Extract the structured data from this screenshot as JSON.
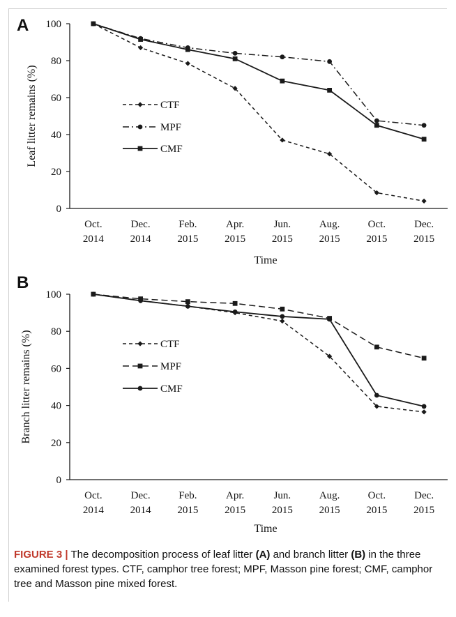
{
  "chart_data": [
    {
      "panel": "A",
      "type": "line",
      "ylabel": "Leaf litter remains (%)",
      "xlabel": "Time",
      "categories": [
        [
          "Oct.",
          "2014"
        ],
        [
          "Dec.",
          "2014"
        ],
        [
          "Feb.",
          "2015"
        ],
        [
          "Apr.",
          "2015"
        ],
        [
          "Jun.",
          "2015"
        ],
        [
          "Aug.",
          "2015"
        ],
        [
          "Oct.",
          "2015"
        ],
        [
          "Dec.",
          "2015"
        ]
      ],
      "ylim": [
        0,
        100
      ],
      "yticks": [
        "0",
        "20",
        "40",
        "60",
        "80",
        "100"
      ],
      "legend_position": "middle-left",
      "series": [
        {
          "name": "CTF",
          "dash": "short-dash",
          "marker": "diamond",
          "values": [
            100,
            87,
            78.5,
            65,
            37,
            29.5,
            8.5,
            4
          ]
        },
        {
          "name": "MPF",
          "dash": "dash-dot",
          "marker": "circle",
          "values": [
            100,
            92,
            87,
            84,
            82,
            79.5,
            47.5,
            45
          ]
        },
        {
          "name": "CMF",
          "dash": "solid",
          "marker": "square",
          "values": [
            100,
            91.5,
            86,
            81,
            69,
            64,
            45,
            37.5
          ]
        }
      ]
    },
    {
      "panel": "B",
      "type": "line",
      "ylabel": "Branch litter remains (%)",
      "xlabel": "Time",
      "categories": [
        [
          "Oct.",
          "2014"
        ],
        [
          "Dec.",
          "2014"
        ],
        [
          "Feb.",
          "2015"
        ],
        [
          "Apr.",
          "2015"
        ],
        [
          "Jun.",
          "2015"
        ],
        [
          "Aug.",
          "2015"
        ],
        [
          "Oct.",
          "2015"
        ],
        [
          "Dec.",
          "2015"
        ]
      ],
      "ylim": [
        0,
        100
      ],
      "yticks": [
        "0",
        "20",
        "40",
        "60",
        "80",
        "100"
      ],
      "legend_position": "middle-left",
      "series": [
        {
          "name": "CTF",
          "dash": "short-dash",
          "marker": "diamond",
          "values": [
            100,
            96.5,
            93.5,
            90,
            85.5,
            66.5,
            39.5,
            36.5
          ]
        },
        {
          "name": "MPF",
          "dash": "long-dash",
          "marker": "square",
          "values": [
            100,
            97.5,
            96,
            95,
            92,
            87,
            71.5,
            65.5
          ]
        },
        {
          "name": "CMF",
          "dash": "solid",
          "marker": "circle",
          "values": [
            100,
            96.5,
            93.5,
            90.5,
            88,
            86.5,
            45.5,
            39.5
          ]
        }
      ]
    }
  ],
  "caption": {
    "label": "FIGURE 3",
    "separator": "|",
    "t1": " The decomposition process of leaf litter ",
    "a": "(A)",
    "t2": " and branch litter ",
    "b": "(B)",
    "t3": " in the three examined forest types. CTF, camphor tree forest; MPF, Masson pine forest; CMF, camphor tree and Masson pine mixed forest."
  },
  "colors": {
    "line": "#1a1a1a",
    "caption_accent": "#c0392b"
  }
}
